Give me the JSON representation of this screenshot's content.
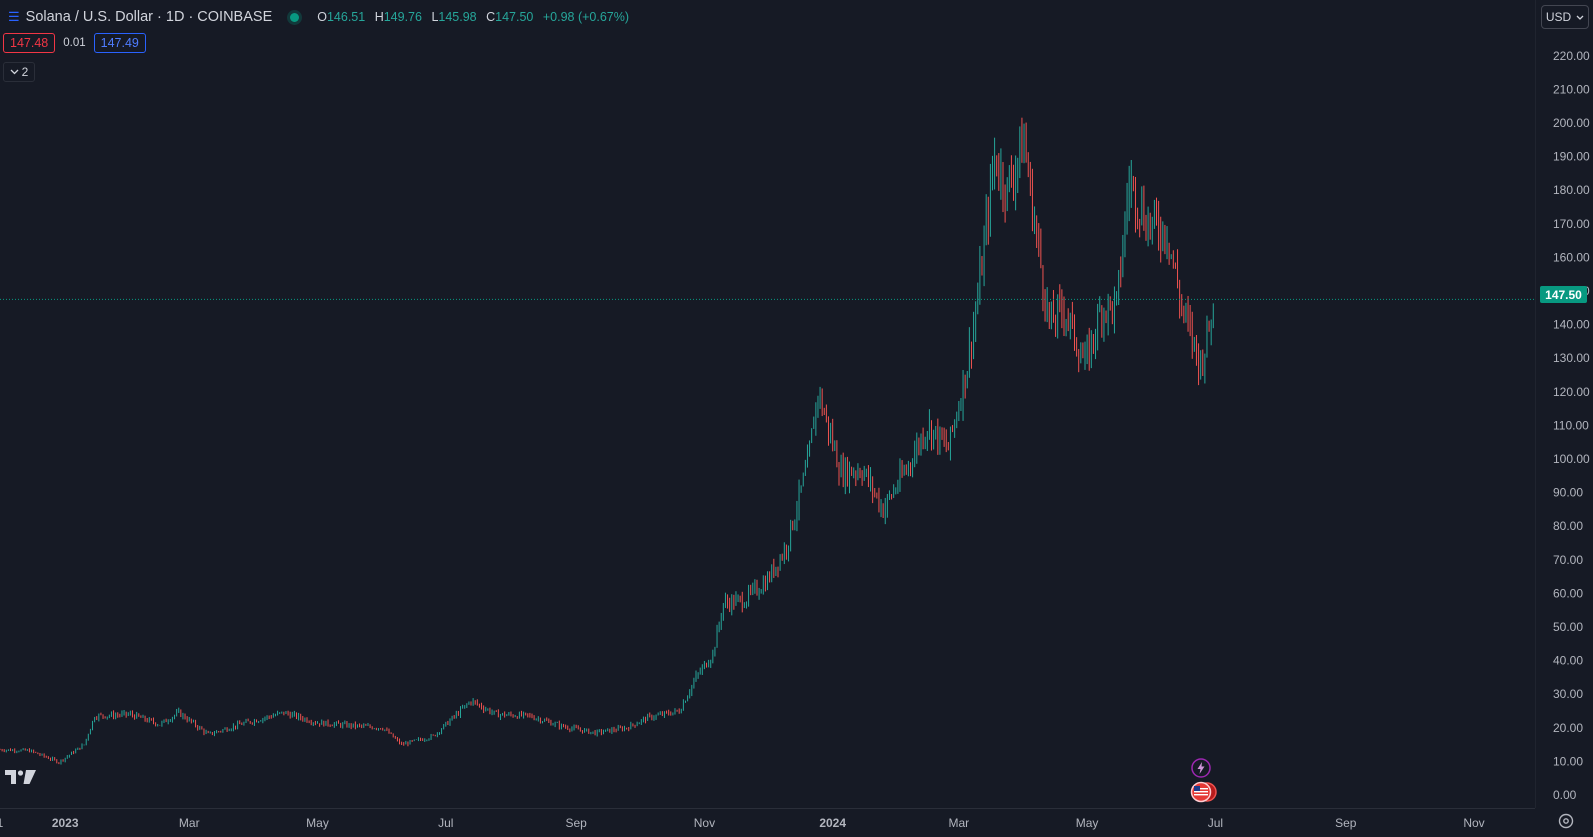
{
  "header": {
    "title": "Solana / U.S. Dollar · 1D · COINBASE",
    "ohlc": {
      "o_label": "O",
      "o": "146.51",
      "h_label": "H",
      "h": "149.76",
      "l_label": "L",
      "l": "145.98",
      "c_label": "C",
      "c": "147.50",
      "change": "+0.98 (+0.67%)"
    },
    "status_color": "#089981"
  },
  "quote": {
    "bid": "147.48",
    "spread": "0.01",
    "ask": "147.49"
  },
  "indicators_toggle": {
    "count": "2",
    "icon": "chevron-down-icon"
  },
  "currency_selector": {
    "label": "USD",
    "icon": "chevron-down-icon"
  },
  "last_price_label": "147.50",
  "colors": {
    "up": "#26a69a",
    "down": "#ef5350",
    "background": "#161a25",
    "last_price_line": "#089981"
  },
  "icons": {
    "logo": "tradingview-logo",
    "events": [
      "lightning-event-icon",
      "us-flag-event-icon"
    ],
    "settings": "settings-gear-icon"
  },
  "chart_data": {
    "type": "candlestick",
    "symbol": "Solana / U.S. Dollar",
    "interval": "1D",
    "exchange": "COINBASE",
    "y_axis_ticks": [
      "0.00",
      "10.00",
      "20.00",
      "30.00",
      "40.00",
      "50.00",
      "60.00",
      "70.00",
      "80.00",
      "90.00",
      "100.00",
      "110.00",
      "120.00",
      "130.00",
      "140.00",
      "150.00",
      "160.00",
      "170.00",
      "180.00",
      "190.00",
      "200.00",
      "210.00",
      "220.00"
    ],
    "ylim": [
      0,
      220
    ],
    "x_axis_ticks": [
      "1",
      "2023",
      "Mar",
      "May",
      "Jul",
      "Sep",
      "Nov",
      "2024",
      "Mar",
      "May",
      "Jul",
      "Sep",
      "Nov"
    ],
    "x_range": [
      "2022-12-01",
      "2024-11-30"
    ],
    "last_price": 147.5,
    "series": [
      {
        "date": "2022-12-01",
        "close": 13.5
      },
      {
        "date": "2022-12-15",
        "close": 13.2
      },
      {
        "date": "2022-12-29",
        "close": 9.8
      },
      {
        "date": "2023-01-10",
        "close": 15.0
      },
      {
        "date": "2023-01-15",
        "close": 23.5
      },
      {
        "date": "2023-02-01",
        "close": 24.0
      },
      {
        "date": "2023-02-15",
        "close": 21.0
      },
      {
        "date": "2023-02-24",
        "close": 24.5
      },
      {
        "date": "2023-03-10",
        "close": 18.0
      },
      {
        "date": "2023-03-25",
        "close": 21.0
      },
      {
        "date": "2023-04-15",
        "close": 24.5
      },
      {
        "date": "2023-05-01",
        "close": 21.5
      },
      {
        "date": "2023-05-20",
        "close": 20.5
      },
      {
        "date": "2023-06-01",
        "close": 20.0
      },
      {
        "date": "2023-06-10",
        "close": 15.0
      },
      {
        "date": "2023-06-25",
        "close": 17.5
      },
      {
        "date": "2023-07-13",
        "close": 28.0
      },
      {
        "date": "2023-07-25",
        "close": 24.0
      },
      {
        "date": "2023-08-10",
        "close": 23.5
      },
      {
        "date": "2023-08-25",
        "close": 20.5
      },
      {
        "date": "2023-09-10",
        "close": 18.5
      },
      {
        "date": "2023-09-25",
        "close": 20.0
      },
      {
        "date": "2023-10-05",
        "close": 23.0
      },
      {
        "date": "2023-10-20",
        "close": 25.0
      },
      {
        "date": "2023-10-28",
        "close": 35.0
      },
      {
        "date": "2023-11-05",
        "close": 42.0
      },
      {
        "date": "2023-11-10",
        "close": 57.0
      },
      {
        "date": "2023-11-20",
        "close": 58.0
      },
      {
        "date": "2023-12-01",
        "close": 64.0
      },
      {
        "date": "2023-12-10",
        "close": 74.0
      },
      {
        "date": "2023-12-20",
        "close": 98.0
      },
      {
        "date": "2023-12-25",
        "close": 120.0
      },
      {
        "date": "2024-01-05",
        "close": 96.0
      },
      {
        "date": "2024-01-15",
        "close": 97.0
      },
      {
        "date": "2024-01-25",
        "close": 85.0
      },
      {
        "date": "2024-02-05",
        "close": 97.0
      },
      {
        "date": "2024-02-15",
        "close": 110.0
      },
      {
        "date": "2024-02-25",
        "close": 103.0
      },
      {
        "date": "2024-03-05",
        "close": 128.0
      },
      {
        "date": "2024-03-10",
        "close": 148.0
      },
      {
        "date": "2024-03-18",
        "close": 190.0
      },
      {
        "date": "2024-03-24",
        "close": 180.0
      },
      {
        "date": "2024-04-01",
        "close": 195.0
      },
      {
        "date": "2024-04-05",
        "close": 175.0
      },
      {
        "date": "2024-04-13",
        "close": 140.0
      },
      {
        "date": "2024-04-20",
        "close": 145.0
      },
      {
        "date": "2024-04-30",
        "close": 128.0
      },
      {
        "date": "2024-05-08",
        "close": 145.0
      },
      {
        "date": "2024-05-15",
        "close": 145.0
      },
      {
        "date": "2024-05-21",
        "close": 183.0
      },
      {
        "date": "2024-05-30",
        "close": 170.0
      },
      {
        "date": "2024-06-08",
        "close": 168.0
      },
      {
        "date": "2024-06-15",
        "close": 145.0
      },
      {
        "date": "2024-06-24",
        "close": 128.0
      },
      {
        "date": "2024-07-01",
        "close": 147.5
      }
    ]
  }
}
